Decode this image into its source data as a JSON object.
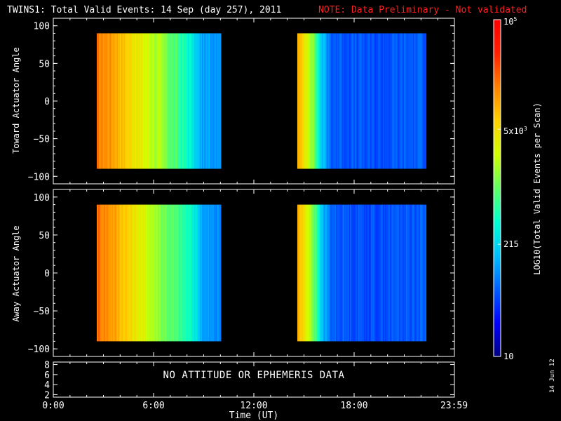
{
  "title": "TWINS1: Total Valid Events: 14 Sep (day 257), 2011",
  "note": "NOTE: Data Preliminary - Not validated",
  "message": "NO ATTITUDE OR EPHEMERIS DATA",
  "datestamp": "14 Jun 12",
  "colorbar": {
    "label": "LOG10(Total Valid Events per Scan)",
    "ticks": [
      "10",
      "215",
      "5x10^3",
      "10^5"
    ],
    "colors": [
      "#000080",
      "#0000ff",
      "#0060ff",
      "#00c0ff",
      "#00ffd0",
      "#60ff60",
      "#d0ff00",
      "#ffd000",
      "#ff8000",
      "#ff2000",
      "#ff0000"
    ]
  },
  "chart_data": [
    {
      "type": "heatmap",
      "ylabel": "Toward Actuator Angle",
      "ylim": [
        -110,
        110
      ],
      "yticks": [
        -100,
        -50,
        0,
        50,
        100
      ],
      "xlim": [
        0,
        24
      ],
      "segments": [
        {
          "x_start": 2.6,
          "x_end": 10.0,
          "y_range": [
            -90,
            90
          ],
          "profile": [
            [
              2.6,
              0.8
            ],
            [
              3.5,
              0.77
            ],
            [
              4.4,
              0.7
            ],
            [
              5.4,
              0.62
            ],
            [
              6.4,
              0.55
            ],
            [
              7.4,
              0.46
            ],
            [
              8.2,
              0.38
            ],
            [
              8.6,
              0.3
            ],
            [
              9.0,
              0.26
            ],
            [
              10.0,
              0.28
            ]
          ]
        },
        {
          "x_start": 14.6,
          "x_end": 22.3,
          "y_range": [
            -90,
            90
          ],
          "profile": [
            [
              14.6,
              0.74
            ],
            [
              15.2,
              0.62
            ],
            [
              15.6,
              0.5
            ],
            [
              16.0,
              0.32
            ],
            [
              16.6,
              0.2
            ],
            [
              19.0,
              0.18
            ],
            [
              22.3,
              0.2
            ]
          ]
        }
      ]
    },
    {
      "type": "heatmap",
      "ylabel": "Away Actuator Angle",
      "ylim": [
        -110,
        110
      ],
      "yticks": [
        -100,
        -50,
        0,
        50,
        100
      ],
      "xlim": [
        0,
        24
      ],
      "segments": [
        {
          "x_start": 2.6,
          "x_end": 10.0,
          "y_range": [
            -90,
            90
          ],
          "profile": [
            [
              2.6,
              0.82
            ],
            [
              3.6,
              0.76
            ],
            [
              4.6,
              0.68
            ],
            [
              5.6,
              0.6
            ],
            [
              6.6,
              0.52
            ],
            [
              7.6,
              0.45
            ],
            [
              8.4,
              0.38
            ],
            [
              9.0,
              0.26
            ],
            [
              10.0,
              0.24
            ]
          ]
        },
        {
          "x_start": 14.6,
          "x_end": 22.3,
          "y_range": [
            -90,
            90
          ],
          "profile": [
            [
              14.6,
              0.74
            ],
            [
              15.2,
              0.62
            ],
            [
              15.6,
              0.5
            ],
            [
              16.0,
              0.32
            ],
            [
              16.6,
              0.2
            ],
            [
              19.0,
              0.18
            ],
            [
              22.3,
              0.2
            ]
          ]
        }
      ]
    },
    {
      "type": "line",
      "ylim": [
        1.5,
        8.5
      ],
      "yticks": [
        2,
        4,
        6,
        8
      ],
      "xlim": [
        0,
        24
      ],
      "xticks": [
        {
          "v": 0,
          "label": "0:00"
        },
        {
          "v": 6,
          "label": "6:00"
        },
        {
          "v": 12,
          "label": "12:00"
        },
        {
          "v": 18,
          "label": "18:00"
        },
        {
          "v": 23.98,
          "label": "23:59"
        }
      ],
      "xlabel": "Time (UT)",
      "series": []
    }
  ]
}
